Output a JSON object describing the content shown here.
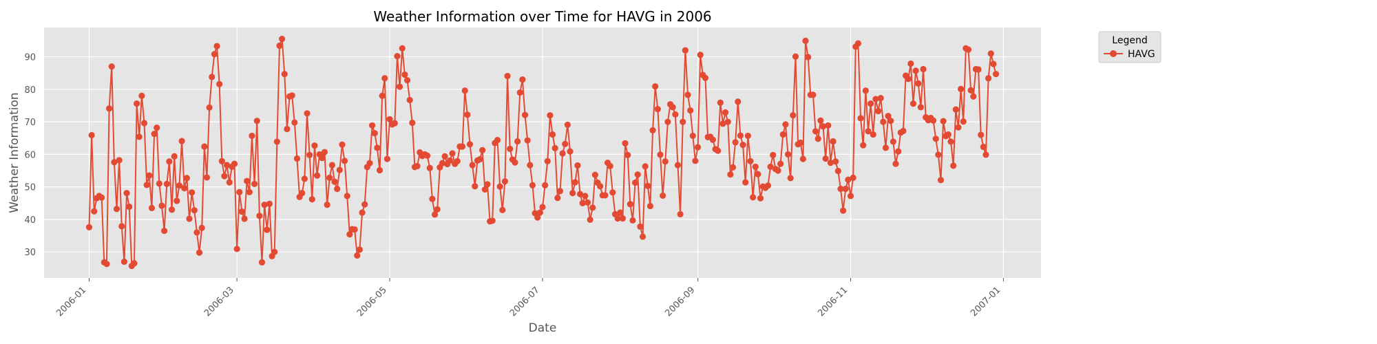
{
  "chart_data": {
    "type": "line",
    "title": "Weather Information over Time for HAVG in 2006",
    "xlabel": "Date",
    "ylabel": "Weather Information",
    "xlim": [
      "2005-12-14",
      "2007-01-16"
    ],
    "ylim": [
      22,
      99
    ],
    "x_ticks": [
      "2006-01",
      "2006-03",
      "2006-05",
      "2006-07",
      "2006-09",
      "2006-11",
      "2007-01"
    ],
    "y_ticks": [
      30,
      40,
      50,
      60,
      70,
      80,
      90
    ],
    "grid": true,
    "legend": {
      "title": "Legend",
      "position": "outside-top-right"
    },
    "colors": {
      "series": "#E24A33",
      "plot_background": "#E5E5E5",
      "grid": "#FFFFFF"
    },
    "x_start": "2006-01-01",
    "x_step_days": 1,
    "series": [
      {
        "name": "HAVG",
        "values": [
          37.6,
          65.9,
          42.5,
          46.5,
          47.2,
          46.7,
          26.8,
          26.3,
          74.1,
          87.0,
          57.6,
          43.2,
          58.2,
          37.9,
          27.0,
          48.1,
          43.9,
          25.7,
          26.5,
          75.6,
          65.4,
          78.0,
          69.6,
          50.6,
          53.5,
          43.5,
          66.3,
          68.2,
          51.0,
          44.2,
          36.5,
          50.9,
          57.8,
          43.0,
          59.4,
          45.7,
          50.4,
          64.1,
          49.6,
          52.7,
          40.2,
          48.3,
          42.8,
          36.0,
          29.8,
          37.4,
          62.4,
          52.9,
          74.4,
          83.8,
          90.8,
          93.3,
          81.6,
          57.9,
          53.3,
          56.7,
          51.4,
          56.2,
          57.1,
          30.9,
          48.4,
          42.4,
          40.2,
          51.8,
          48.4,
          65.7,
          50.9,
          70.3,
          41.1,
          26.8,
          44.5,
          36.8,
          44.8,
          28.7,
          30.0,
          63.9,
          93.4,
          95.5,
          84.7,
          67.8,
          77.8,
          78.1,
          69.8,
          58.7,
          46.9,
          48.1,
          52.5,
          72.6,
          59.8,
          46.2,
          62.7,
          53.5,
          60.0,
          58.9,
          60.7,
          44.5,
          52.8,
          56.7,
          51.6,
          49.4,
          55.2,
          63.0,
          58.0,
          47.2,
          35.4,
          37.0,
          36.9,
          28.9,
          30.7,
          42.1,
          44.6,
          56.1,
          57.3,
          68.9,
          66.5,
          62.0,
          55.1,
          78.0,
          83.4,
          58.6,
          70.8,
          69.2,
          69.6,
          90.2,
          80.8,
          92.6,
          84.5,
          82.8,
          76.7,
          69.7,
          56.1,
          56.4,
          60.6,
          59.5,
          60.0,
          59.6,
          55.8,
          46.3,
          41.5,
          43.1,
          56.0,
          57.3,
          59.4,
          57.0,
          58.1,
          60.3,
          57.1,
          57.9,
          62.4,
          62.4,
          79.6,
          72.2,
          63.1,
          56.7,
          50.2,
          58.1,
          58.5,
          61.3,
          49.2,
          50.8,
          39.4,
          39.6,
          63.5,
          64.4,
          50.1,
          42.9,
          51.7,
          84.1,
          61.7,
          58.4,
          57.5,
          64.0,
          79.0,
          83.0,
          72.1,
          64.3,
          56.7,
          50.5,
          41.9,
          40.6,
          42.1,
          43.8,
          50.5,
          57.9,
          72.0,
          66.1,
          61.9,
          46.6,
          48.7,
          60.3,
          63.2,
          69.1,
          60.9,
          48.1,
          51.4,
          56.6,
          47.8,
          45.0,
          47.2,
          45.2,
          39.9,
          43.6,
          53.7,
          51.3,
          50.2,
          47.4,
          47.4,
          57.4,
          56.4,
          48.3,
          41.6,
          40.3,
          42.1,
          40.3,
          63.4,
          59.8,
          44.7,
          39.7,
          51.3,
          53.8,
          37.8,
          34.7,
          56.3,
          50.3,
          44.1,
          67.4,
          80.9,
          73.9,
          59.9,
          47.3,
          57.8,
          70.0,
          75.4,
          74.5,
          72.3,
          56.7,
          41.6,
          70.0,
          92.0,
          78.3,
          73.5,
          65.7,
          58.0,
          62.2,
          90.6,
          84.4,
          83.5,
          65.3,
          65.4,
          64.5,
          61.6,
          61.1,
          75.9,
          69.4,
          72.9,
          70.0,
          53.8,
          56.0,
          63.7,
          76.2,
          65.8,
          62.9,
          51.4,
          65.7,
          57.9,
          46.8,
          56.2,
          53.9,
          46.5,
          50.1,
          49.7,
          50.4,
          56.2,
          59.8,
          55.5,
          55.0,
          57.1,
          66.1,
          69.2,
          60.0,
          52.7,
          72.0,
          90.1,
          63.1,
          63.6,
          58.6,
          94.9,
          89.9,
          78.3,
          78.3,
          67.1,
          64.8,
          70.4,
          68.6,
          58.7,
          68.9,
          57.4,
          64.0,
          57.8,
          54.9,
          49.4,
          42.7,
          49.4,
          52.2,
          47.2,
          52.8,
          93.1,
          94.1,
          71.1,
          62.8,
          79.6,
          67.1,
          75.6,
          66.1,
          77.0,
          73.3,
          77.3,
          70.0,
          62.0,
          71.8,
          70.3,
          63.9,
          57.1,
          60.9,
          66.7,
          67.2,
          84.2,
          83.2,
          87.9,
          75.6,
          85.7,
          81.8,
          74.5,
          86.2,
          71.4,
          70.5,
          71.2,
          70.4,
          64.8,
          59.9,
          52.1,
          70.2,
          65.6,
          66.1,
          63.9,
          56.5,
          73.8,
          68.3,
          80.1,
          70.1,
          92.6,
          92.2,
          79.7,
          77.8,
          86.2,
          86.1,
          66.0,
          62.3,
          59.9,
          83.4,
          91.0,
          87.8,
          84.7
        ]
      }
    ]
  }
}
